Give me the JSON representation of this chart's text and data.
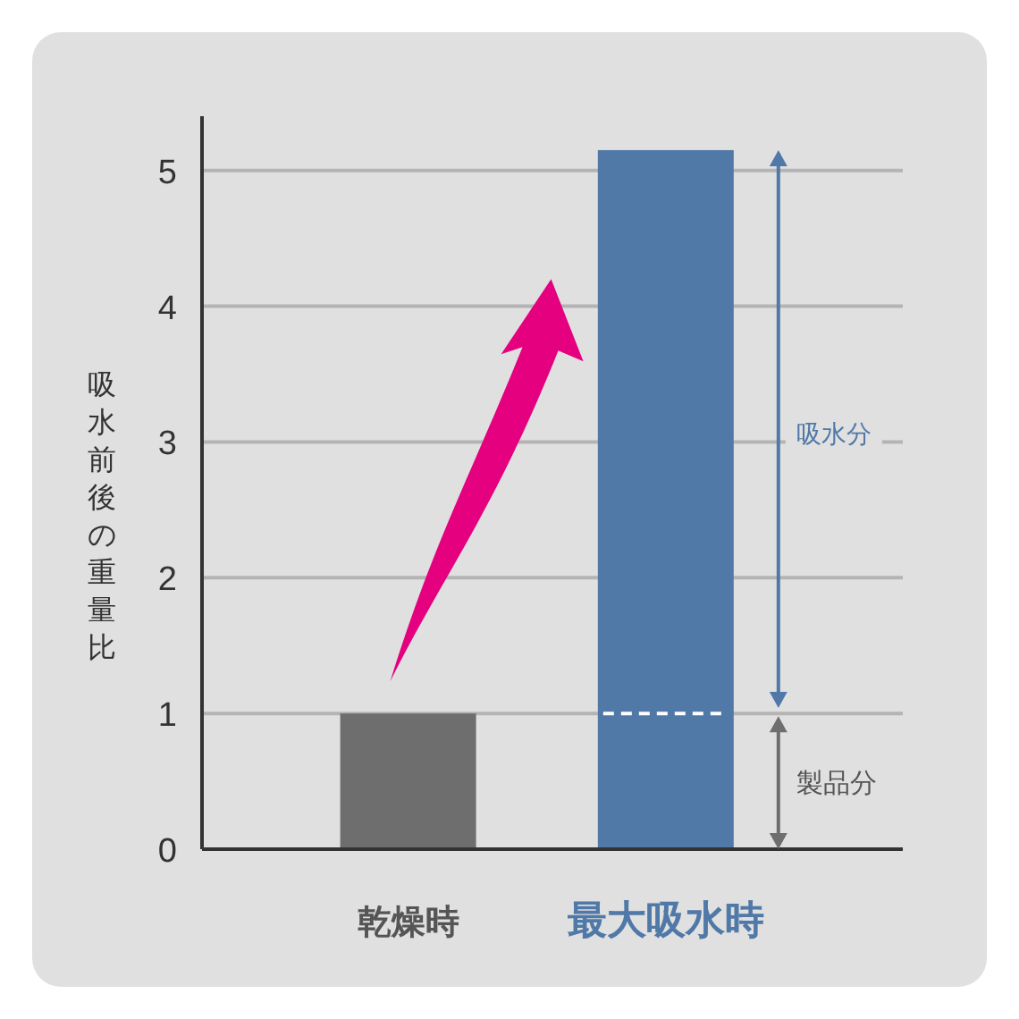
{
  "chart_data": {
    "type": "bar",
    "categories": [
      "乾燥時",
      "最大吸水時"
    ],
    "series": [
      {
        "colors": [
          "#6e6e6e",
          "#5079a8"
        ],
        "values": [
          1,
          5.15
        ]
      }
    ],
    "ylabel": "吸水前後の重量比",
    "ylim": [
      0,
      5.4
    ],
    "yticks": [
      0,
      1,
      2,
      3,
      4,
      5
    ],
    "grid": "y",
    "ref_lines": [
      {
        "axis": "y",
        "value": 1,
        "color": "#ffffff",
        "line_style": "dashed"
      }
    ],
    "annotations": [
      "吸水分",
      "製品分"
    ]
  }
}
